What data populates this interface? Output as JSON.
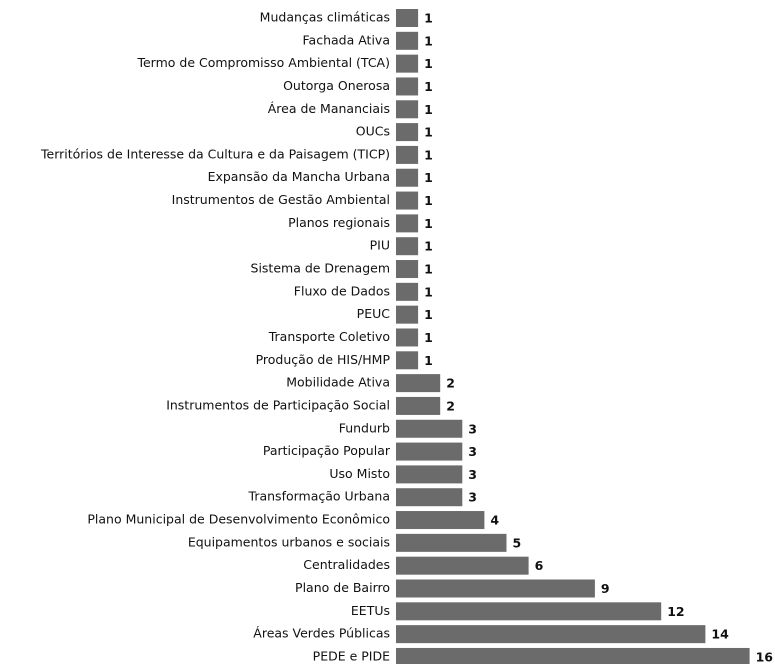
{
  "chart_data": {
    "type": "bar",
    "orientation": "horizontal",
    "color": "#6b6b6b",
    "categories": [
      "Mudanças climáticas",
      "Fachada Ativa",
      "Termo de Compromisso Ambiental (TCA)",
      "Outorga Onerosa",
      "Área de Mananciais",
      "OUCs",
      "Territórios de Interesse da Cultura e da Paisagem (TICP)",
      "Expansão da Mancha Urbana",
      "Instrumentos de Gestão Ambiental",
      "Planos regionais",
      "PIU",
      "Sistema de Drenagem",
      "Fluxo de Dados",
      "PEUC",
      "Transporte Coletivo",
      "Produção de HIS/HMP",
      "Mobilidade Ativa",
      "Instrumentos de Participação Social",
      "Fundurb",
      "Participação Popular",
      "Uso Misto",
      "Transformação Urbana",
      "Plano Municipal de Desenvolvimento Econômico",
      "Equipamentos urbanos e sociais",
      "Centralidades",
      "Plano de Bairro",
      "EETUs",
      "Áreas Verdes Públicas",
      "PEDE e PIDE"
    ],
    "values": [
      1,
      1,
      1,
      1,
      1,
      1,
      1,
      1,
      1,
      1,
      1,
      1,
      1,
      1,
      1,
      1,
      2,
      2,
      3,
      3,
      3,
      3,
      4,
      5,
      6,
      9,
      12,
      14,
      16
    ]
  }
}
